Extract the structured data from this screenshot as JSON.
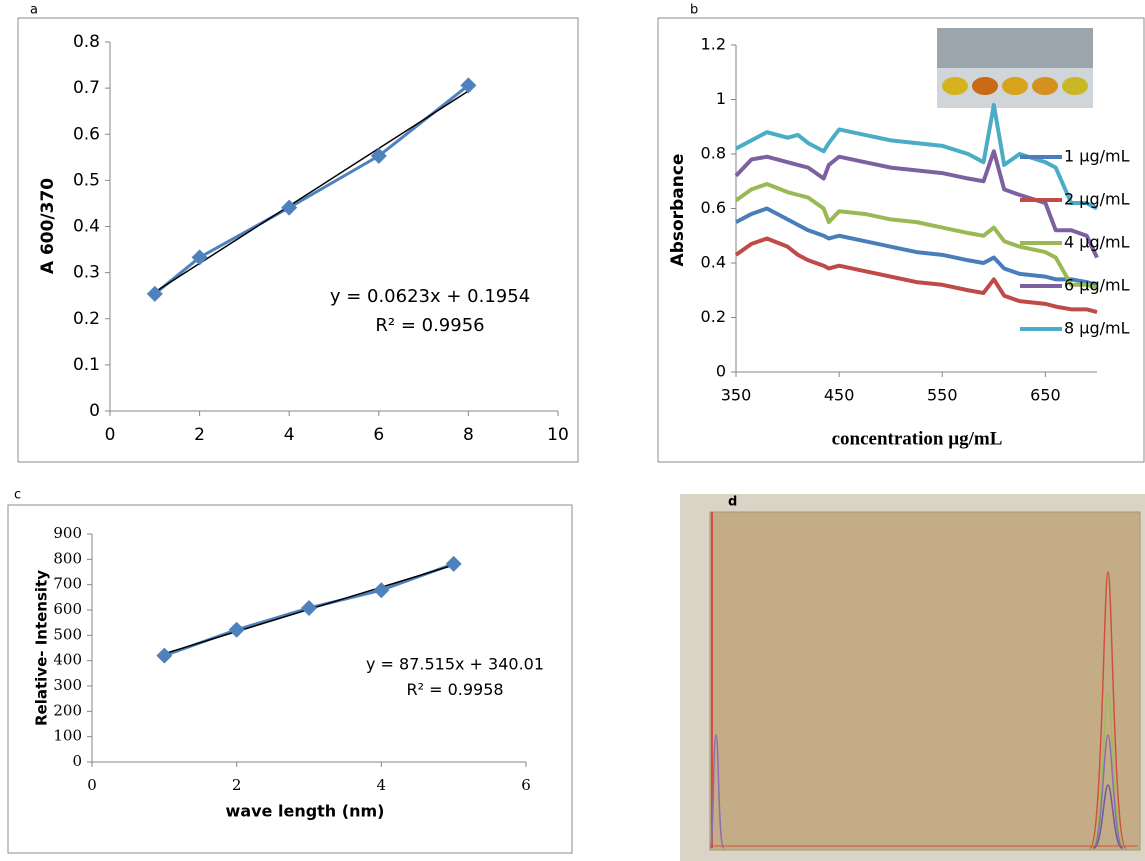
{
  "chart_data": [
    {
      "type": "scatter",
      "label": "a",
      "ylabel": "A 600/370",
      "x": [
        1,
        2,
        4,
        6,
        8
      ],
      "values": [
        0.254,
        0.333,
        0.441,
        0.553,
        0.706
      ],
      "color": "#4f81bd",
      "trendline": {
        "slope": 0.0623,
        "intercept": 0.1954,
        "color": "#000000"
      },
      "annotations": [
        "y = 0.0623x + 0.1954",
        "R² = 0.9956"
      ],
      "xlim": [
        0,
        10
      ],
      "xticks": [
        0,
        2,
        4,
        6,
        8,
        10
      ],
      "ylim": [
        0,
        0.8
      ],
      "yticks": [
        0,
        0.1,
        0.2,
        0.3,
        0.4,
        0.5,
        0.6,
        0.7,
        0.8
      ]
    },
    {
      "type": "line",
      "label": "b",
      "ylabel": "Absorbance",
      "xlabel": "concentration µg/mL",
      "legend": "right",
      "x": [
        350,
        365,
        380,
        400,
        410,
        420,
        435,
        440,
        450,
        475,
        500,
        525,
        550,
        575,
        590,
        600,
        610,
        625,
        650,
        660,
        675,
        690,
        700
      ],
      "series": [
        {
          "name": "1 µg/mL",
          "color": "#4a7ebb",
          "values": [
            0.55,
            0.58,
            0.6,
            0.56,
            0.54,
            0.52,
            0.5,
            0.49,
            0.5,
            0.48,
            0.46,
            0.44,
            0.43,
            0.41,
            0.4,
            0.42,
            0.38,
            0.36,
            0.35,
            0.34,
            0.34,
            0.33,
            0.32
          ]
        },
        {
          "name": "2 µg/mL",
          "color": "#be4b48",
          "values": [
            0.43,
            0.47,
            0.49,
            0.46,
            0.43,
            0.41,
            0.39,
            0.38,
            0.39,
            0.37,
            0.35,
            0.33,
            0.32,
            0.3,
            0.29,
            0.34,
            0.28,
            0.26,
            0.25,
            0.24,
            0.23,
            0.23,
            0.22
          ]
        },
        {
          "name": "4 µg/mL",
          "color": "#98b954",
          "values": [
            0.63,
            0.67,
            0.69,
            0.66,
            0.65,
            0.64,
            0.6,
            0.55,
            0.59,
            0.58,
            0.56,
            0.55,
            0.53,
            0.51,
            0.5,
            0.53,
            0.48,
            0.46,
            0.44,
            0.42,
            0.32,
            0.32,
            0.31
          ]
        },
        {
          "name": "6 µg/mL",
          "color": "#7d60a0",
          "values": [
            0.72,
            0.78,
            0.79,
            0.77,
            0.76,
            0.75,
            0.71,
            0.76,
            0.79,
            0.77,
            0.75,
            0.74,
            0.73,
            0.71,
            0.7,
            0.81,
            0.67,
            0.65,
            0.62,
            0.52,
            0.52,
            0.5,
            0.42
          ]
        },
        {
          "name": "8 µg/mL",
          "color": "#4bacc6",
          "values": [
            0.82,
            0.85,
            0.88,
            0.86,
            0.87,
            0.84,
            0.81,
            0.84,
            0.89,
            0.87,
            0.85,
            0.84,
            0.83,
            0.8,
            0.77,
            0.98,
            0.76,
            0.8,
            0.77,
            0.75,
            0.62,
            0.62,
            0.6
          ]
        }
      ],
      "xlim": [
        350,
        700
      ],
      "xticks": [
        350,
        450,
        550,
        650
      ],
      "ylim": [
        0,
        1.2
      ],
      "yticks": [
        0,
        0.2,
        0.4,
        0.6,
        0.8,
        1,
        1.2
      ]
    },
    {
      "type": "scatter",
      "label": "c",
      "ylabel": "Relative- Intensity",
      "xlabel": "wave length (nm)",
      "x": [
        1,
        2,
        3,
        4,
        5
      ],
      "values": [
        420,
        522,
        608,
        678,
        782
      ],
      "color": "#4f81bd",
      "trendline": {
        "slope": 87.515,
        "intercept": 340.01,
        "color": "#000000"
      },
      "annotations": [
        "y = 87.515x + 340.01",
        "R² = 0.9958"
      ],
      "xlim": [
        0,
        6
      ],
      "xticks": [
        0,
        2,
        4,
        6
      ],
      "ylim": [
        0,
        900
      ],
      "yticks": [
        0,
        100,
        200,
        300,
        400,
        500,
        600,
        700,
        800,
        900
      ]
    },
    {
      "type": "image",
      "label": "d"
    }
  ]
}
